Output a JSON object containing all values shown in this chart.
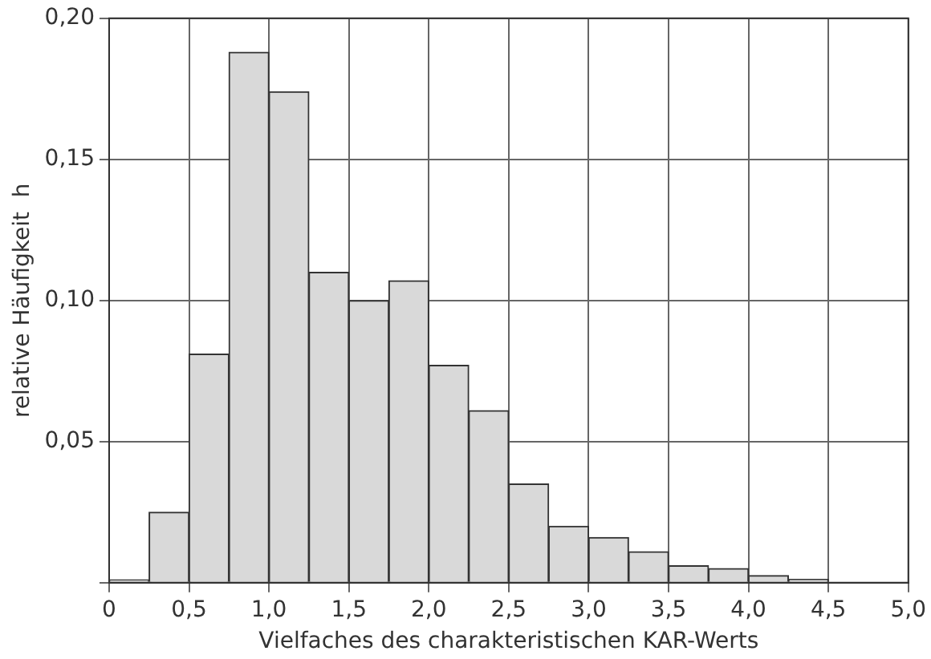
{
  "chart_data": {
    "type": "histogram",
    "xlabel": "Vielfaches des charakteristischen KAR-Werts",
    "ylabel": "relative Häufigkeit  h",
    "bins": [
      0,
      0.25,
      0.5,
      0.75,
      1.0,
      1.25,
      1.5,
      1.75,
      2.0,
      2.25,
      2.5,
      2.75,
      3.0,
      3.25,
      3.5,
      3.75,
      4.0,
      4.25,
      4.5
    ],
    "values": [
      0.001,
      0.025,
      0.081,
      0.188,
      0.174,
      0.11,
      0.1,
      0.107,
      0.077,
      0.061,
      0.035,
      0.02,
      0.016,
      0.011,
      0.006,
      0.005,
      0.0025,
      0.0012
    ],
    "color": "#d9d9d9",
    "xlim": [
      0,
      5
    ],
    "xticks": [
      0,
      {
        "value": 0.5,
        "label": "0,5"
      },
      {
        "value": 1.0,
        "label": "1,0"
      },
      {
        "value": 1.5,
        "label": "1,5"
      },
      {
        "value": 2.0,
        "label": "2,0"
      },
      {
        "value": 2.5,
        "label": "2,5"
      },
      {
        "value": 3.0,
        "label": "3,0"
      },
      {
        "value": 3.5,
        "label": "3,5"
      },
      {
        "value": 4.0,
        "label": "4,0"
      },
      {
        "value": 4.5,
        "label": "4,5"
      },
      {
        "value": 5.0,
        "label": "5,0"
      }
    ],
    "ylim": [
      0,
      0.2
    ],
    "yticks": [
      {
        "value": 0,
        "label": null
      },
      {
        "value": 0.05,
        "label": "0,05"
      },
      {
        "value": 0.1,
        "label": "0,10"
      },
      {
        "value": 0.15,
        "label": "0,15"
      },
      {
        "value": 0.2,
        "label": "0,20"
      }
    ],
    "grid": true
  }
}
